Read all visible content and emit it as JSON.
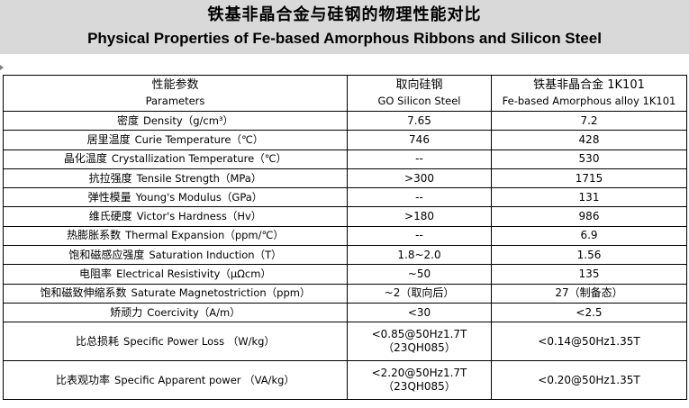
{
  "title_cn": "铁基非晶合金与硅钢的物理性能对比",
  "title_en": "Physical Properties of Fe-based Amorphous Ribbons and Silicon Steel",
  "headers": [
    {
      "cn": "性能参数",
      "en": "Parameters"
    },
    {
      "cn": "取向硅钢",
      "en": "GO Silicon Steel"
    },
    {
      "cn": "铁基非晶合金  1K101",
      "en": "Fe-based Amorphous alloy 1K101"
    }
  ],
  "rows": [
    {
      "cn": "密度",
      "en": "Density（g/cm³）",
      "go": "7.65",
      "amorph": "7.2"
    },
    {
      "cn": "居里温度",
      "en": "Curie Temperature（℃）",
      "go": "746",
      "amorph": "428"
    },
    {
      "cn": "晶化温度",
      "en": "Crystallization Temperature（℃）",
      "go": "--",
      "amorph": "530"
    },
    {
      "cn": "抗拉强度",
      "en": "Tensile Strength（MPa）",
      "go": ">300",
      "amorph": "1715"
    },
    {
      "cn": "弹性模量",
      "en": "Young's Modulus（GPa）",
      "go": "--",
      "amorph": "131"
    },
    {
      "cn": "维氏硬度",
      "en": "Victor's Hardness（Hv）",
      "go": ">180",
      "amorph": "986"
    },
    {
      "cn": "热膨胀系数",
      "en": "Thermal Expansion（ppm/℃）",
      "go": "--",
      "amorph": "6.9"
    },
    {
      "cn": "饱和磁感应强度",
      "en": "Saturation Induction（T）",
      "go": "1.8~2.0",
      "amorph": "1.56"
    },
    {
      "cn": "电阻率",
      "en": "Electrical Resistivity（μΩcm）",
      "go": "~50",
      "amorph": "135"
    },
    {
      "cn": "饱和磁致伸缩系数",
      "en": "Saturate Magnetostriction（ppm）",
      "go": "~2（取向后）",
      "amorph": "27（制备态）"
    },
    {
      "cn": "矫顽力",
      "en": "Coercivity（A/m）",
      "go": "<30",
      "amorph": "<2.5"
    }
  ],
  "rows_tall": [
    {
      "cn": "比总损耗",
      "en": "Specific Power Loss （W/kg）",
      "go_l1": "<0.85@50Hz1.7T",
      "go_l2": "（23QH085）",
      "amorph": "<0.14@50Hz1.35T"
    },
    {
      "cn": "比表观功率",
      "en": "Specific Apparent power （VA/kg）",
      "go_l1": "<2.20@50Hz1.7T",
      "go_l2": "（23QH085）",
      "amorph": "<0.20@50Hz1.35T"
    }
  ]
}
